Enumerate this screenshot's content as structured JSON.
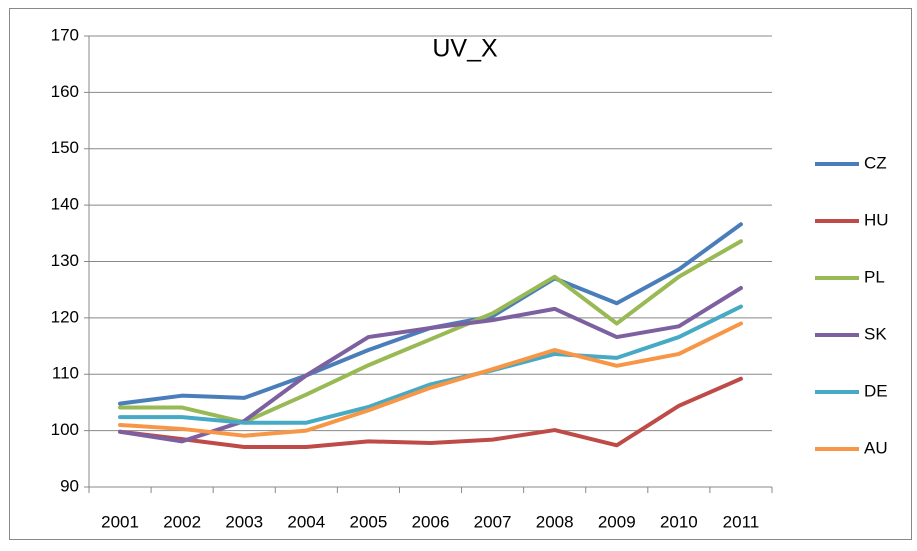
{
  "chart_data": {
    "type": "line",
    "title": "UV_X",
    "categories": [
      "2001",
      "2002",
      "2003",
      "2004",
      "2005",
      "2006",
      "2007",
      "2008",
      "2009",
      "2010",
      "2011"
    ],
    "series": [
      {
        "name": "CZ",
        "color": "#4a7ebb",
        "values": [
          104.8,
          106.2,
          105.8,
          109.8,
          114.3,
          118.2,
          120.3,
          127.0,
          122.6,
          128.6,
          136.6
        ]
      },
      {
        "name": "HU",
        "color": "#be4b48",
        "values": [
          99.8,
          98.5,
          97.1,
          97.1,
          98.1,
          97.8,
          98.4,
          100.1,
          97.4,
          104.4,
          109.2
        ]
      },
      {
        "name": "PL",
        "color": "#98b954",
        "values": [
          104.1,
          104.1,
          101.5,
          106.4,
          111.6,
          116.2,
          120.8,
          127.3,
          119.0,
          127.3,
          133.6
        ]
      },
      {
        "name": "SK",
        "color": "#7d60a0",
        "values": [
          99.8,
          98.1,
          101.7,
          109.8,
          116.6,
          118.2,
          119.6,
          121.6,
          116.6,
          118.5,
          125.3
        ]
      },
      {
        "name": "DE",
        "color": "#46aac5",
        "values": [
          102.4,
          102.4,
          101.4,
          101.4,
          104.2,
          108.2,
          110.7,
          113.6,
          112.9,
          116.6,
          122.0
        ]
      },
      {
        "name": "AU",
        "color": "#f79646",
        "values": [
          101.0,
          100.3,
          99.1,
          100.0,
          103.6,
          107.6,
          110.9,
          114.3,
          111.5,
          113.6,
          119.0
        ]
      }
    ],
    "ylim": [
      90,
      170
    ],
    "yticks": [
      90,
      100,
      110,
      120,
      130,
      140,
      150,
      160,
      170
    ],
    "grid": true,
    "legend": "right"
  }
}
